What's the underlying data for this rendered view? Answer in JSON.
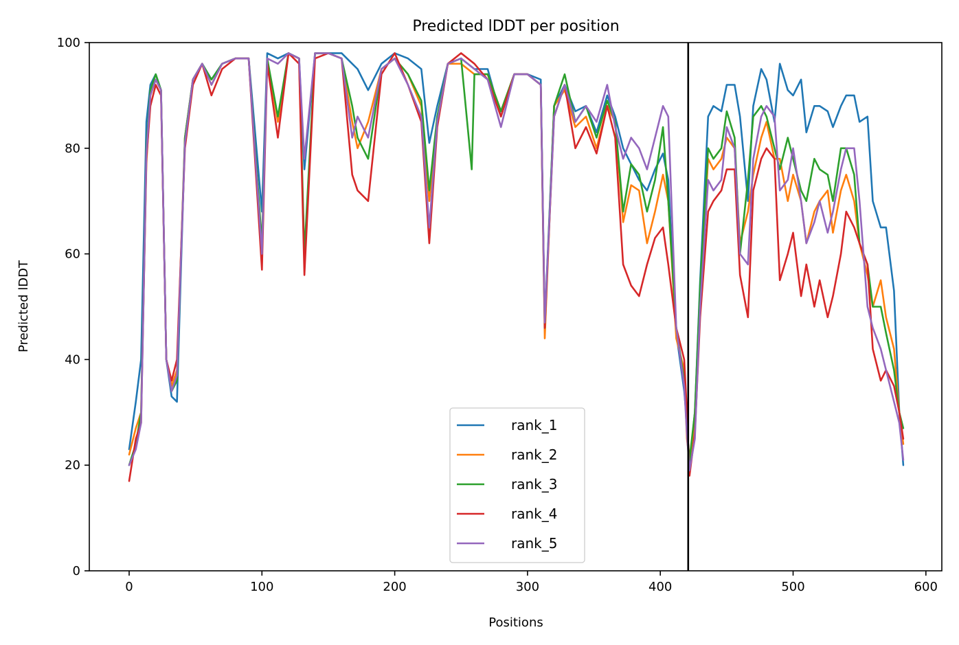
{
  "chart_data": {
    "type": "line",
    "title": "Predicted lDDT per position",
    "xlabel": "Positions",
    "ylabel": "Predicted lDDT",
    "xlim": [
      -30,
      612
    ],
    "ylim": [
      0,
      100
    ],
    "xticks": [
      0,
      100,
      200,
      300,
      400,
      500,
      600
    ],
    "yticks": [
      0,
      20,
      40,
      60,
      80,
      100
    ],
    "grid": false,
    "legend_position": "lower-center",
    "vertical_line_x": 421,
    "series": [
      {
        "name": "rank_1",
        "color": "#1f77b4",
        "x": [
          0,
          5,
          9,
          13,
          16,
          20,
          24,
          28,
          32,
          36,
          42,
          48,
          55,
          62,
          70,
          80,
          90,
          100,
          104,
          112,
          120,
          128,
          132,
          140,
          150,
          160,
          168,
          172,
          180,
          190,
          200,
          210,
          220,
          226,
          232,
          240,
          250,
          260,
          270,
          280,
          290,
          300,
          310,
          313,
          320,
          328,
          336,
          344,
          352,
          360,
          366,
          372,
          378,
          384,
          390,
          396,
          402,
          406,
          412,
          418,
          420,
          422,
          426,
          430,
          436,
          440,
          446,
          450,
          456,
          460,
          466,
          470,
          476,
          480,
          486,
          490,
          496,
          500,
          506,
          510,
          516,
          520,
          526,
          530,
          536,
          540,
          546,
          550,
          556,
          560,
          566,
          570,
          576,
          580,
          583
        ],
        "values": [
          23,
          32,
          40,
          85,
          92,
          94,
          91,
          40,
          33,
          32,
          82,
          93,
          96,
          93,
          96,
          97,
          97,
          68,
          98,
          97,
          98,
          97,
          76,
          98,
          98,
          98,
          96,
          95,
          91,
          96,
          98,
          97,
          95,
          81,
          88,
          96,
          97,
          95,
          95,
          86,
          94,
          94,
          93,
          47,
          88,
          92,
          87,
          88,
          83,
          90,
          86,
          80,
          77,
          74,
          72,
          76,
          79,
          74,
          45,
          34,
          28,
          20,
          30,
          55,
          86,
          88,
          87,
          92,
          92,
          86,
          70,
          88,
          95,
          93,
          85,
          96,
          91,
          90,
          93,
          83,
          88,
          88,
          87,
          84,
          88,
          90,
          90,
          85,
          86,
          70,
          65,
          65,
          53,
          30,
          20
        ]
      },
      {
        "name": "rank_2",
        "color": "#ff7f0e",
        "x": [
          0,
          5,
          9,
          13,
          16,
          20,
          24,
          28,
          32,
          36,
          42,
          48,
          55,
          62,
          70,
          80,
          90,
          100,
          104,
          112,
          120,
          128,
          132,
          140,
          150,
          160,
          168,
          172,
          180,
          190,
          200,
          210,
          220,
          226,
          232,
          240,
          250,
          260,
          270,
          280,
          290,
          300,
          310,
          313,
          320,
          328,
          336,
          344,
          352,
          360,
          366,
          372,
          378,
          384,
          390,
          396,
          402,
          406,
          412,
          418,
          420,
          422,
          426,
          430,
          436,
          440,
          446,
          450,
          456,
          460,
          466,
          470,
          476,
          480,
          486,
          490,
          496,
          500,
          506,
          510,
          516,
          520,
          526,
          530,
          536,
          540,
          546,
          550,
          556,
          560,
          566,
          570,
          576,
          580,
          583
        ],
        "values": [
          22,
          27,
          30,
          77,
          90,
          93,
          91,
          40,
          35,
          38,
          82,
          93,
          96,
          92,
          96,
          97,
          97,
          60,
          97,
          85,
          98,
          97,
          58,
          98,
          98,
          97,
          85,
          80,
          85,
          95,
          97,
          94,
          88,
          70,
          85,
          96,
          96,
          94,
          94,
          87,
          94,
          94,
          92,
          44,
          88,
          91,
          84,
          86,
          80,
          88,
          85,
          66,
          73,
          72,
          62,
          68,
          75,
          70,
          44,
          38,
          25,
          21,
          28,
          52,
          78,
          76,
          78,
          82,
          80,
          62,
          68,
          75,
          82,
          85,
          78,
          78,
          70,
          75,
          70,
          62,
          68,
          70,
          72,
          64,
          72,
          75,
          70,
          62,
          56,
          50,
          55,
          48,
          42,
          30,
          24
        ]
      },
      {
        "name": "rank_3",
        "color": "#2ca02c",
        "x": [
          0,
          5,
          9,
          13,
          16,
          20,
          24,
          28,
          32,
          36,
          42,
          48,
          55,
          62,
          70,
          80,
          90,
          100,
          104,
          112,
          120,
          128,
          132,
          140,
          150,
          160,
          168,
          172,
          180,
          190,
          200,
          210,
          220,
          226,
          232,
          240,
          250,
          258,
          260,
          270,
          280,
          290,
          300,
          310,
          313,
          320,
          328,
          336,
          344,
          352,
          360,
          366,
          372,
          378,
          384,
          390,
          396,
          402,
          406,
          412,
          418,
          420,
          422,
          426,
          430,
          436,
          440,
          446,
          450,
          456,
          460,
          466,
          470,
          476,
          480,
          486,
          490,
          496,
          500,
          506,
          510,
          516,
          520,
          526,
          530,
          536,
          540,
          546,
          550,
          556,
          560,
          566,
          570,
          576,
          580,
          583
        ],
        "values": [
          20,
          24,
          30,
          80,
          91,
          94,
          91,
          40,
          34,
          36,
          82,
          93,
          96,
          93,
          96,
          97,
          97,
          62,
          97,
          86,
          98,
          97,
          60,
          98,
          98,
          97,
          88,
          82,
          78,
          95,
          97,
          94,
          89,
          72,
          86,
          96,
          97,
          76,
          94,
          94,
          87,
          94,
          94,
          92,
          46,
          88,
          94,
          85,
          88,
          82,
          89,
          85,
          68,
          77,
          75,
          68,
          74,
          84,
          70,
          46,
          36,
          27,
          21,
          30,
          54,
          80,
          78,
          80,
          87,
          82,
          60,
          74,
          86,
          88,
          86,
          80,
          76,
          82,
          78,
          72,
          70,
          78,
          76,
          75,
          70,
          80,
          80,
          75,
          62,
          58,
          50,
          50,
          45,
          38,
          30,
          27
        ]
      },
      {
        "name": "rank_4",
        "color": "#d62728",
        "x": [
          0,
          5,
          9,
          13,
          16,
          20,
          24,
          28,
          32,
          36,
          42,
          48,
          55,
          62,
          70,
          80,
          90,
          100,
          104,
          112,
          120,
          128,
          132,
          140,
          150,
          160,
          168,
          172,
          180,
          190,
          200,
          210,
          220,
          226,
          232,
          240,
          250,
          260,
          270,
          280,
          290,
          300,
          310,
          313,
          320,
          328,
          336,
          344,
          352,
          360,
          366,
          372,
          378,
          384,
          390,
          396,
          402,
          406,
          412,
          418,
          420,
          422,
          426,
          430,
          436,
          440,
          446,
          450,
          456,
          460,
          466,
          470,
          476,
          480,
          486,
          490,
          496,
          500,
          506,
          510,
          516,
          520,
          526,
          530,
          536,
          540,
          546,
          550,
          556,
          560,
          566,
          570,
          576,
          580,
          583
        ],
        "values": [
          17,
          25,
          28,
          78,
          88,
          92,
          90,
          40,
          36,
          40,
          80,
          92,
          96,
          90,
          95,
          97,
          97,
          57,
          96,
          82,
          98,
          96,
          56,
          97,
          98,
          97,
          75,
          72,
          70,
          94,
          98,
          92,
          85,
          62,
          84,
          96,
          98,
          96,
          93,
          86,
          94,
          94,
          92,
          46,
          86,
          92,
          80,
          84,
          79,
          88,
          82,
          58,
          54,
          52,
          58,
          63,
          65,
          58,
          46,
          40,
          30,
          18,
          26,
          48,
          68,
          70,
          72,
          76,
          76,
          56,
          48,
          72,
          78,
          80,
          78,
          55,
          60,
          64,
          52,
          58,
          50,
          55,
          48,
          52,
          60,
          68,
          65,
          62,
          58,
          42,
          36,
          38,
          35,
          30,
          25
        ]
      },
      {
        "name": "rank_5",
        "color": "#9467bd",
        "x": [
          0,
          5,
          9,
          13,
          16,
          20,
          24,
          28,
          32,
          36,
          42,
          48,
          55,
          62,
          70,
          80,
          90,
          100,
          104,
          112,
          120,
          128,
          132,
          140,
          150,
          160,
          168,
          172,
          180,
          190,
          200,
          210,
          220,
          226,
          232,
          240,
          250,
          260,
          270,
          280,
          290,
          300,
          310,
          313,
          320,
          328,
          336,
          344,
          352,
          360,
          366,
          372,
          378,
          384,
          390,
          396,
          402,
          406,
          412,
          418,
          420,
          422,
          426,
          430,
          436,
          440,
          446,
          450,
          456,
          460,
          466,
          470,
          476,
          480,
          486,
          490,
          496,
          500,
          506,
          510,
          516,
          520,
          526,
          530,
          536,
          540,
          546,
          550,
          556,
          560,
          566,
          570,
          576,
          580,
          583
        ],
        "values": [
          20,
          23,
          28,
          79,
          90,
          93,
          91,
          40,
          34,
          37,
          81,
          93,
          96,
          92,
          96,
          97,
          97,
          60,
          97,
          96,
          98,
          97,
          78,
          98,
          98,
          97,
          82,
          86,
          82,
          95,
          97,
          92,
          86,
          65,
          85,
          96,
          97,
          95,
          93,
          84,
          94,
          94,
          92,
          47,
          86,
          92,
          85,
          88,
          85,
          92,
          84,
          78,
          82,
          80,
          76,
          82,
          88,
          86,
          46,
          35,
          26,
          19,
          25,
          50,
          74,
          72,
          74,
          84,
          80,
          60,
          58,
          78,
          86,
          88,
          86,
          72,
          74,
          80,
          70,
          62,
          66,
          70,
          64,
          68,
          76,
          80,
          80,
          70,
          50,
          46,
          42,
          38,
          32,
          28,
          21
        ]
      }
    ]
  }
}
